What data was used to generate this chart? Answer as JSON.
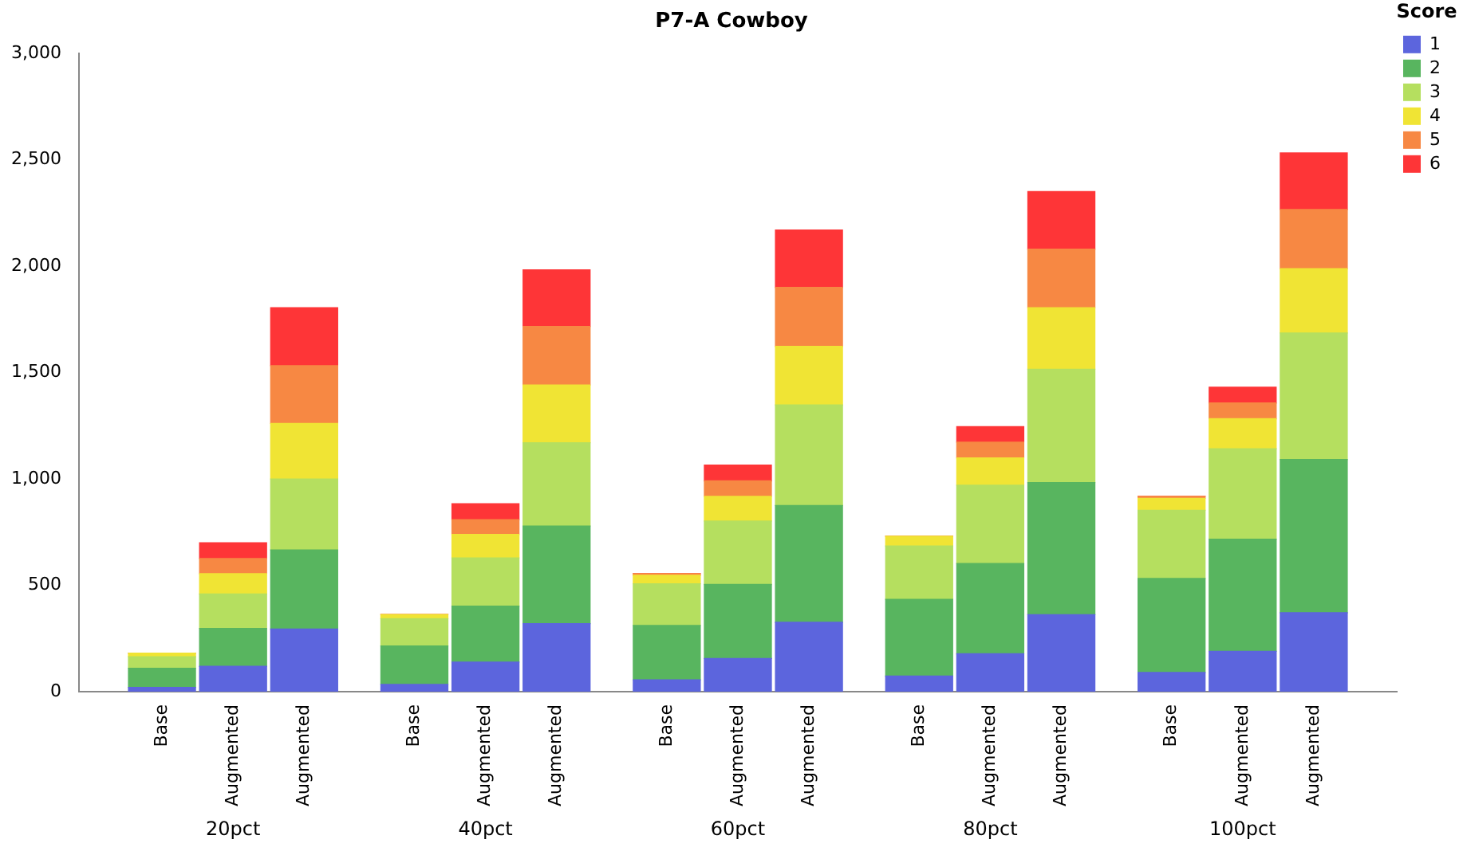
{
  "chart_data": {
    "type": "bar",
    "title": "P7-A Cowboy",
    "legend_title": "Score",
    "stacked": true,
    "legend": "top right",
    "grid": false,
    "categories": [
      "Base",
      "Augmented",
      "Augmented",
      "Base",
      "Augmented",
      "Augmented",
      "Base",
      "Augmented",
      "Augmented",
      "Base",
      "Augmented",
      "Augmented",
      "Base",
      "Augmented",
      "Augmented"
    ],
    "annotations": [
      "20pct",
      "40pct",
      "60pct",
      "80pct",
      "100pct"
    ],
    "ylim": [
      0,
      3000
    ],
    "yticks": [
      0,
      {
        "value": 500,
        "label": "500"
      },
      {
        "value": 1000,
        "label": "1,000"
      },
      {
        "value": 1500,
        "label": "1,500"
      },
      {
        "value": 2000,
        "label": "2,000"
      },
      {
        "value": 2500,
        "label": "2,500"
      },
      {
        "value": 3000,
        "label": "3,000"
      }
    ],
    "series": [
      {
        "name": "1",
        "color": "#5c65dd",
        "values": [
          20,
          119,
          294,
          34,
          139,
          320,
          56,
          156,
          326,
          73,
          178,
          362,
          90,
          190,
          371
        ]
      },
      {
        "name": "2",
        "color": "#58b55f",
        "values": [
          90,
          178,
          372,
          181,
          263,
          459,
          255,
          348,
          549,
          361,
          425,
          621,
          442,
          527,
          720
        ]
      },
      {
        "name": "3",
        "color": "#b5df5f",
        "values": [
          54,
          162,
          334,
          128,
          227,
          391,
          196,
          298,
          473,
          251,
          368,
          533,
          321,
          425,
          595
        ]
      },
      {
        "name": "4",
        "color": "#f0e434",
        "values": [
          17,
          96,
          261,
          20,
          110,
          272,
          40,
          116,
          275,
          46,
          128,
          289,
          56,
          141,
          303
        ]
      },
      {
        "name": "5",
        "color": "#f78843",
        "values": [
          null,
          71,
          272,
          null,
          70,
          275,
          8,
          73,
          278,
          null,
          74,
          275,
          9,
          74,
          278
        ]
      },
      {
        "name": "6",
        "color": "#fe3537",
        "values": [
          0,
          74,
          272,
          0,
          75,
          266,
          0,
          74,
          269,
          0,
          73,
          271,
          0,
          74,
          266
        ]
      }
    ]
  }
}
